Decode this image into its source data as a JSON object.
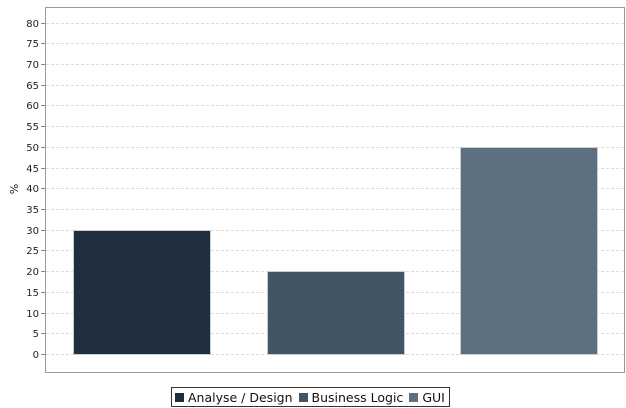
{
  "chart_data": {
    "type": "bar",
    "title": "",
    "xlabel": "",
    "ylabel": "%",
    "ylim": [
      0,
      80
    ],
    "ytick_step": 5,
    "grid": "horizontal dashed",
    "legend_position": "bottom-center",
    "categories": [
      "Analyse / Design",
      "Business Logic",
      "GUI"
    ],
    "values": [
      30,
      20,
      50
    ],
    "colors": [
      "#1f2f3d",
      "#415464",
      "#5e7080"
    ]
  },
  "legend": {
    "items": [
      {
        "label": "Analyse / Design",
        "color": "#1f2f3d"
      },
      {
        "label": "Business Logic",
        "color": "#415464"
      },
      {
        "label": "GUI",
        "color": "#5e7080"
      }
    ]
  }
}
